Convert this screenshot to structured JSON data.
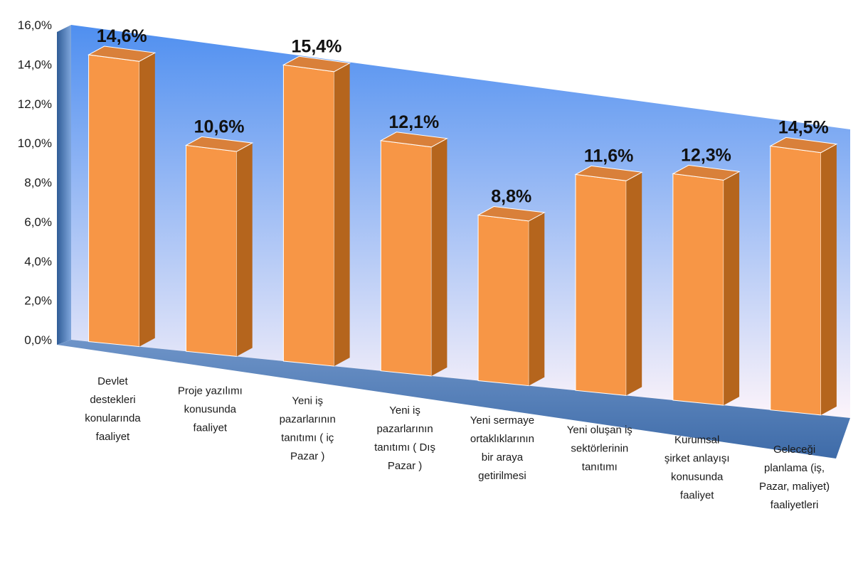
{
  "chart_data": {
    "type": "bar",
    "title": "",
    "xlabel": "",
    "ylabel": "",
    "ylim": [
      0,
      16
    ],
    "yticks": [
      "0,0%",
      "2,0%",
      "4,0%",
      "6,0%",
      "8,0%",
      "10,0%",
      "12,0%",
      "14,0%",
      "16,0%"
    ],
    "grid": false,
    "legend": "none",
    "categories": [
      "Devlet destekleri konularında faaliyet",
      "Proje yazılımı konusunda faaliyet",
      "Yeni iş pazarlarının tanıtımı ( iç Pazar )",
      "Yeni iş pazarlarının tanıtımı ( Dış Pazar )",
      "Yeni sermaye ortaklıklarının bir araya getirilmesi",
      "Yeni oluşan iş sektörlerinin tanıtımı",
      "Kurumsal şirket anlayışı konusunda faaliyet",
      "Geleceği planlama (iş, Pazar, maliyet) faaliyetleri"
    ],
    "category_lines": [
      [
        "Devlet",
        "destekleri",
        "konularında",
        "faaliyet"
      ],
      [
        "Proje yazılımı",
        "konusunda",
        "faaliyet"
      ],
      [
        "Yeni iş",
        "pazarlarının",
        "tanıtımı ( iç",
        "Pazar )"
      ],
      [
        "Yeni iş",
        "pazarlarının",
        "tanıtımı ( Dış",
        "Pazar )"
      ],
      [
        "Yeni sermaye",
        "ortaklıklarının",
        "bir araya",
        "getirilmesi"
      ],
      [
        "Yeni oluşan iş",
        "sektörlerinin",
        "tanıtımı"
      ],
      [
        "Kurumsal",
        "şirket anlayışı",
        "konusunda",
        "faaliyet"
      ],
      [
        "Geleceği",
        "planlama (iş,",
        "Pazar, maliyet)",
        "faaliyetleri"
      ]
    ],
    "values": [
      14.6,
      10.6,
      15.4,
      12.1,
      8.8,
      11.6,
      12.3,
      14.5
    ],
    "value_labels": [
      "14,6%",
      "10,6%",
      "15,4%",
      "12,1%",
      "8,8%",
      "11,6%",
      "12,3%",
      "14,5%"
    ],
    "colors": {
      "bar_front": "#F79646",
      "bar_side": "#B5651D",
      "bar_top": "#D9803A",
      "wall_top": "#4F8FF0",
      "wall_bottom": "#FDF4FA",
      "floor": "#4F81BD"
    }
  }
}
